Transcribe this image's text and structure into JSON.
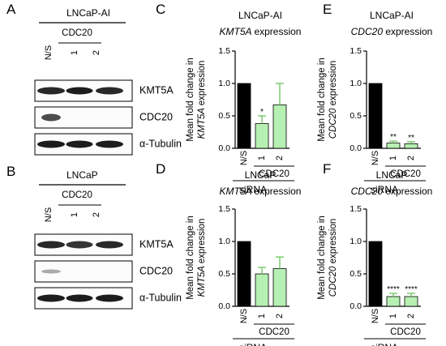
{
  "panels": {
    "A": {
      "letter": "A",
      "cell_line": "LNCaP-AI",
      "group_label": "CDC20",
      "lanes": [
        "N/S",
        "1",
        "2"
      ],
      "blots": [
        {
          "label": "KMT5A",
          "bands": [
            0.9,
            0.95,
            0.9
          ]
        },
        {
          "label": "CDC20",
          "bands": [
            0.75,
            0.0,
            0.0
          ]
        },
        {
          "label": "α-Tubulin",
          "bands": [
            0.95,
            0.95,
            0.95
          ]
        }
      ]
    },
    "B": {
      "letter": "B",
      "cell_line": "LNCaP",
      "group_label": "CDC20",
      "lanes": [
        "N/S",
        "1",
        "2"
      ],
      "blots": [
        {
          "label": "KMT5A",
          "bands": [
            0.9,
            0.85,
            0.9
          ]
        },
        {
          "label": "CDC20",
          "bands": [
            0.35,
            0.0,
            0.0
          ]
        },
        {
          "label": "α-Tubulin",
          "bands": [
            0.95,
            0.95,
            0.95
          ]
        }
      ]
    }
  },
  "chart_data": [
    {
      "panel": "C",
      "type": "bar",
      "title": "LNCaP-AI",
      "subtitle": "KMT5A expression",
      "ylabel_line1": "Mean fold change in",
      "ylabel_gene": "KMT5A",
      "ylabel_line2": "expression",
      "categories": [
        "N/S",
        "1",
        "2"
      ],
      "values": [
        1.0,
        0.38,
        0.67
      ],
      "errors": [
        0,
        0.12,
        0.33
      ],
      "significance": [
        "",
        "*",
        ""
      ],
      "colors": [
        "#000000",
        "#b7f0b3",
        "#b7f0b3"
      ],
      "group_label": "CDC20",
      "xlabel": "siRNA",
      "ylim": [
        0,
        1.5
      ],
      "yticks": [
        "0.0",
        "0.5",
        "1.0",
        "1.5"
      ]
    },
    {
      "panel": "D",
      "type": "bar",
      "title": "LNCaP",
      "subtitle": "KMT5A expression",
      "ylabel_line1": "Mean fold change in",
      "ylabel_gene": "KMT5A",
      "ylabel_line2": "expression",
      "categories": [
        "N/S",
        "1",
        "2"
      ],
      "values": [
        1.0,
        0.5,
        0.58
      ],
      "errors": [
        0,
        0.1,
        0.18
      ],
      "significance": [
        "",
        "",
        ""
      ],
      "colors": [
        "#000000",
        "#b7f0b3",
        "#b7f0b3"
      ],
      "group_label": "CDC20",
      "xlabel": "siRNA",
      "ylim": [
        0,
        1.5
      ],
      "yticks": [
        "0.0",
        "0.5",
        "1.0",
        "1.5"
      ]
    },
    {
      "panel": "E",
      "type": "bar",
      "title": "LNCaP-AI",
      "subtitle": "CDC20 expression",
      "ylabel_line1": "Mean fold change in",
      "ylabel_gene": "CDC20",
      "ylabel_line2": "expression",
      "categories": [
        "N/S",
        "1",
        "2"
      ],
      "values": [
        1.0,
        0.08,
        0.07
      ],
      "errors": [
        0,
        0.03,
        0.03
      ],
      "significance": [
        "",
        "**",
        "**"
      ],
      "colors": [
        "#000000",
        "#b7f0b3",
        "#b7f0b3"
      ],
      "group_label": "CDC20",
      "xlabel": "siRNA",
      "ylim": [
        0,
        1.5
      ],
      "yticks": [
        "0.0",
        "0.5",
        "1.0",
        "1.5"
      ]
    },
    {
      "panel": "F",
      "type": "bar",
      "title": "LNCaP",
      "subtitle": "CDC20 expression",
      "ylabel_line1": "Mean fold change in",
      "ylabel_gene": "CDC20",
      "ylabel_line2": "expression",
      "categories": [
        "N/S",
        "1",
        "2"
      ],
      "values": [
        1.0,
        0.15,
        0.15
      ],
      "errors": [
        0,
        0.05,
        0.05
      ],
      "significance": [
        "",
        "****",
        "****"
      ],
      "colors": [
        "#000000",
        "#b7f0b3",
        "#b7f0b3"
      ],
      "group_label": "CDC20",
      "xlabel": "siRNA",
      "ylim": [
        0,
        1.5
      ],
      "yticks": [
        "0.0",
        "0.5",
        "1.0",
        "1.5"
      ]
    }
  ]
}
